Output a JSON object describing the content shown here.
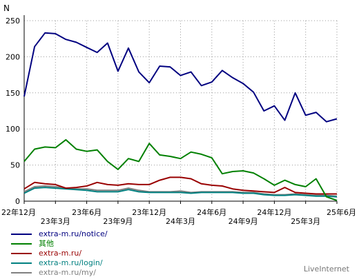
{
  "chart_data": {
    "type": "line",
    "ylabel": "N",
    "ylim": [
      0,
      250
    ],
    "yticks": [
      0,
      50,
      100,
      150,
      200,
      250
    ],
    "grid": true,
    "x_labels": [
      {
        "label": "22年12月",
        "index": 0,
        "row": 1
      },
      {
        "label": "23年3月",
        "index": 3,
        "row": 2
      },
      {
        "label": "23年6月",
        "index": 6,
        "row": 1
      },
      {
        "label": "23年9月",
        "index": 9,
        "row": 2
      },
      {
        "label": "23年12月",
        "index": 12,
        "row": 1
      },
      {
        "label": "24年3月",
        "index": 15,
        "row": 2
      },
      {
        "label": "24年6月",
        "index": 18,
        "row": 1
      },
      {
        "label": "24年9月",
        "index": 21,
        "row": 2
      },
      {
        "label": "24年12月",
        "index": 24,
        "row": 1
      },
      {
        "label": "25年3月",
        "index": 27,
        "row": 2
      },
      {
        "label": "25年6月",
        "index": 30,
        "row": 1
      }
    ],
    "series": [
      {
        "name": "extra-m.ru/notice/",
        "color": "#000080",
        "values": [
          145,
          214,
          233,
          232,
          224,
          220,
          213,
          206,
          219,
          180,
          212,
          179,
          164,
          187,
          186,
          174,
          179,
          160,
          165,
          181,
          171,
          163,
          151,
          125,
          132,
          112,
          150,
          119,
          123,
          110,
          114
        ]
      },
      {
        "name": "其他",
        "color": "#008000",
        "values": [
          55,
          72,
          75,
          74,
          85,
          72,
          69,
          71,
          55,
          44,
          59,
          55,
          80,
          64,
          62,
          59,
          68,
          65,
          60,
          38,
          41,
          42,
          39,
          31,
          22,
          29,
          23,
          20,
          31,
          6,
          1
        ]
      },
      {
        "name": "extra-m.ru/",
        "color": "#990000",
        "values": [
          17,
          26,
          24,
          23,
          18,
          19,
          21,
          26,
          23,
          22,
          24,
          23,
          23,
          29,
          33,
          33,
          31,
          24,
          22,
          21,
          17,
          15,
          14,
          13,
          12,
          19,
          12,
          11,
          10,
          10,
          10
        ]
      },
      {
        "name": "extra-m.ru/login/",
        "color": "#008080",
        "values": [
          11,
          18,
          19,
          18,
          17,
          16,
          15,
          13,
          13,
          13,
          16,
          13,
          12,
          12,
          12,
          12,
          11,
          12,
          12,
          12,
          12,
          11,
          11,
          9,
          8,
          8,
          9,
          8,
          7,
          7,
          6
        ]
      },
      {
        "name": "extra-m.ru/my/",
        "color": "#808080",
        "values": [
          13,
          20,
          21,
          20,
          18,
          17,
          17,
          15,
          15,
          15,
          18,
          15,
          13,
          13,
          13,
          14,
          12,
          13,
          13,
          13,
          13,
          12,
          12,
          10,
          9,
          9,
          10,
          9,
          8,
          8,
          7
        ]
      }
    ]
  },
  "branding": "LiveInternet"
}
